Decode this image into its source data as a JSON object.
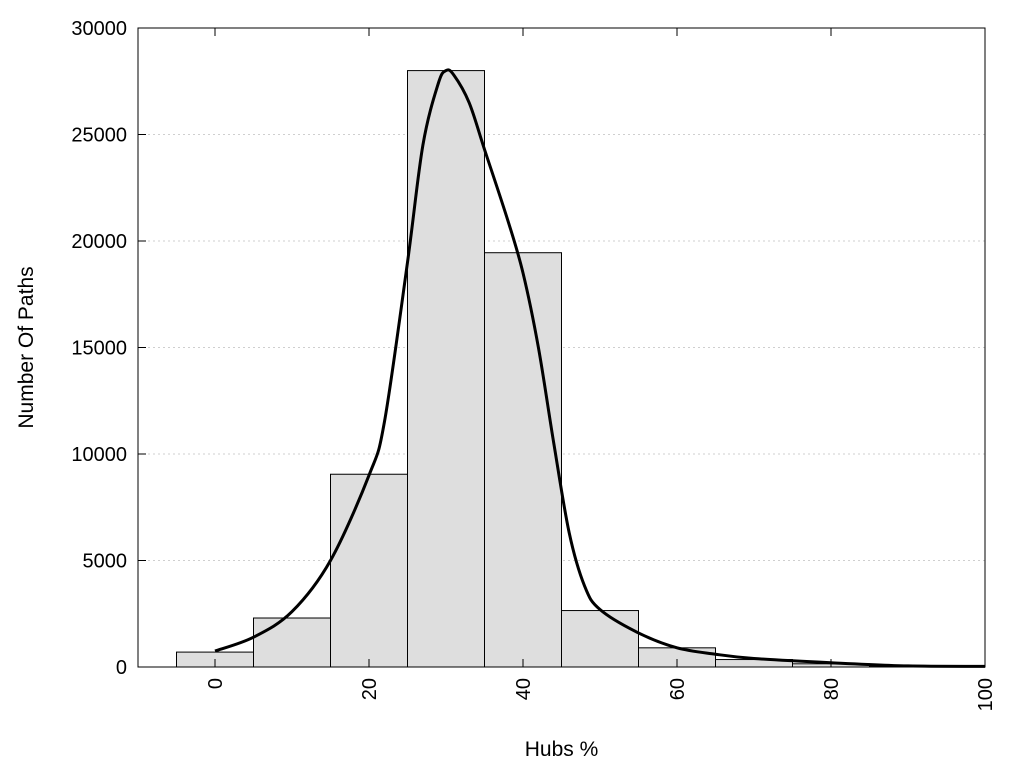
{
  "chart_data": {
    "type": "bar",
    "xlabel": "Hubs %",
    "ylabel": "Number Of Paths",
    "xlim": [
      -10,
      100
    ],
    "ylim": [
      0,
      30000
    ],
    "xticks": [
      0,
      20,
      40,
      60,
      80,
      100
    ],
    "yticks": [
      0,
      5000,
      10000,
      15000,
      20000,
      25000,
      30000
    ],
    "grid": "horizontal-dotted",
    "bin_width": 10,
    "bins": [
      0,
      10,
      20,
      30,
      40,
      50,
      60,
      70,
      80,
      90
    ],
    "values": [
      700,
      2300,
      9050,
      28000,
      19450,
      2650,
      900,
      350,
      150,
      50
    ],
    "curve": {
      "x": [
        0,
        5,
        10,
        15,
        20,
        22,
        25,
        27,
        29,
        30,
        31,
        33,
        35,
        38,
        40,
        42,
        44,
        46,
        48,
        50,
        55,
        60,
        65,
        70,
        80,
        90,
        100
      ],
      "y": [
        750,
        1400,
        2600,
        5000,
        9000,
        11500,
        19000,
        24500,
        27400,
        28000,
        27800,
        26500,
        24300,
        21000,
        18500,
        15000,
        10500,
        6300,
        3800,
        2700,
        1600,
        900,
        600,
        400,
        200,
        50,
        30
      ]
    },
    "colors": {
      "bar_fill": "#dedede",
      "bar_stroke": "#000000",
      "curve": "#000000",
      "grid": "#cfcfcf"
    }
  }
}
